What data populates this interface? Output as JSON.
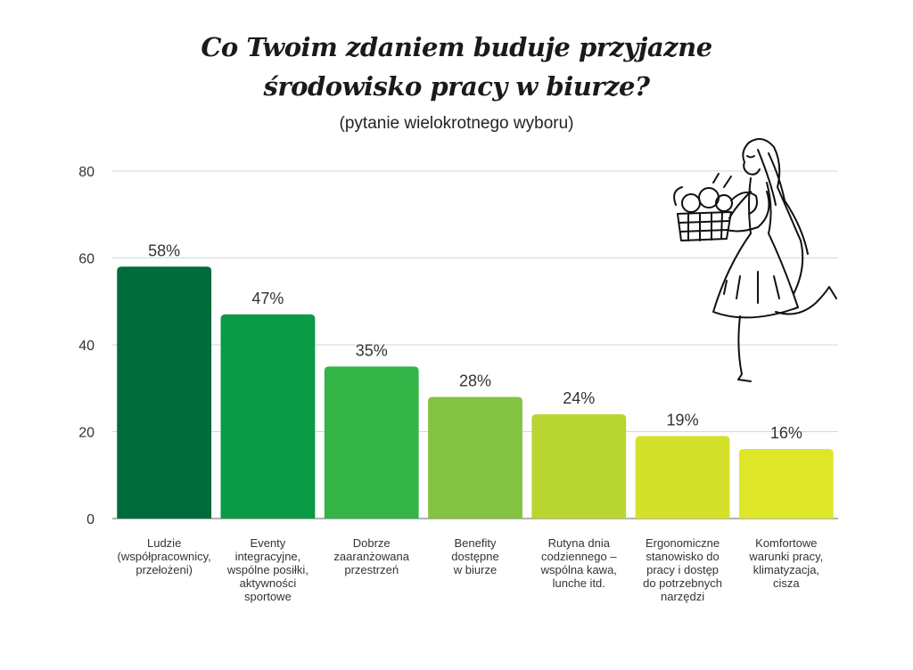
{
  "chart_data": {
    "type": "bar",
    "title_line1": "Co Twoim zdaniem buduje przyjazne",
    "title_line2": "środowisko pracy w biurze?",
    "subtitle": "(pytanie wielokrotnego wyboru)",
    "categories": [
      [
        "Ludzie",
        "(współpracownicy,",
        "przełożeni)"
      ],
      [
        "Eventy",
        "integracyjne,",
        "wspólne posiłki,",
        "aktywności",
        "sportowe"
      ],
      [
        "Dobrze",
        "zaaranżowana",
        "przestrzeń"
      ],
      [
        "Benefity",
        "dostępne",
        "w biurze"
      ],
      [
        "Rutyna dnia",
        "codziennego –",
        "wspólna kawa,",
        "lunche itd."
      ],
      [
        "Ergonomiczne",
        "stanowisko do",
        "pracy i dostęp",
        "do potrzebnych",
        "narzędzi"
      ],
      [
        "Komfortowe",
        "warunki pracy,",
        "klimatyzacja,",
        "cisza"
      ]
    ],
    "values": [
      58,
      47,
      35,
      28,
      24,
      19,
      16
    ],
    "value_labels": [
      "58%",
      "47%",
      "35%",
      "28%",
      "24%",
      "19%",
      "16%"
    ],
    "colors": [
      "#006b3c",
      "#0b9a45",
      "#35b448",
      "#83c341",
      "#b9d531",
      "#d4e12b",
      "#dee62a"
    ],
    "ylim": [
      0,
      80
    ],
    "yticks": [
      0,
      20,
      40,
      60,
      80
    ],
    "grid": true
  }
}
